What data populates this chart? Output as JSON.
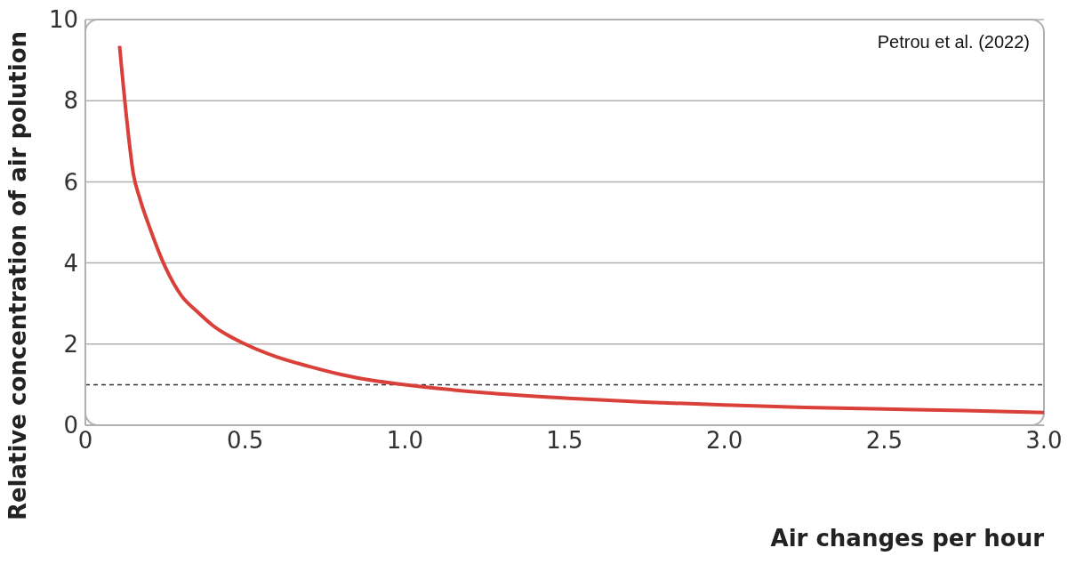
{
  "chart_data": {
    "type": "line",
    "xlabel": "Air changes per hour",
    "ylabel": "Relative concentration of air polution",
    "annotations": [
      "Petrou et al. (2022)"
    ],
    "series": [
      {
        "color": "#d9403a",
        "x": [
          0.107,
          0.13,
          0.15,
          0.17,
          0.2,
          0.25,
          0.3,
          0.35,
          0.4,
          0.5,
          0.6,
          0.7,
          0.8,
          0.9,
          1.0,
          1.25,
          1.5,
          1.75,
          2.0,
          2.25,
          2.5,
          2.75,
          3.0
        ],
        "values": [
          9.35,
          7.5,
          6.2,
          5.6,
          4.9,
          3.9,
          3.2,
          2.8,
          2.45,
          2.0,
          1.68,
          1.45,
          1.25,
          1.1,
          1.0,
          0.8,
          0.67,
          0.57,
          0.5,
          0.44,
          0.4,
          0.36,
          0.31
        ]
      }
    ],
    "xlim": [
      0,
      3
    ],
    "xticks": [
      0,
      0.5,
      {
        "value": 1,
        "label": "1.0"
      },
      1.5,
      {
        "value": 2,
        "label": "2.0"
      },
      2.5,
      {
        "value": 3,
        "label": "3.0"
      }
    ],
    "ylim": [
      0,
      10
    ],
    "yticks": [
      0,
      2,
      4,
      6,
      8,
      10
    ],
    "ref_lines": [
      {
        "axis": "y",
        "value": 1,
        "color": "#333333",
        "line_style": "dashed"
      }
    ],
    "grid": "y",
    "marker": "none",
    "line_style": "solid"
  }
}
